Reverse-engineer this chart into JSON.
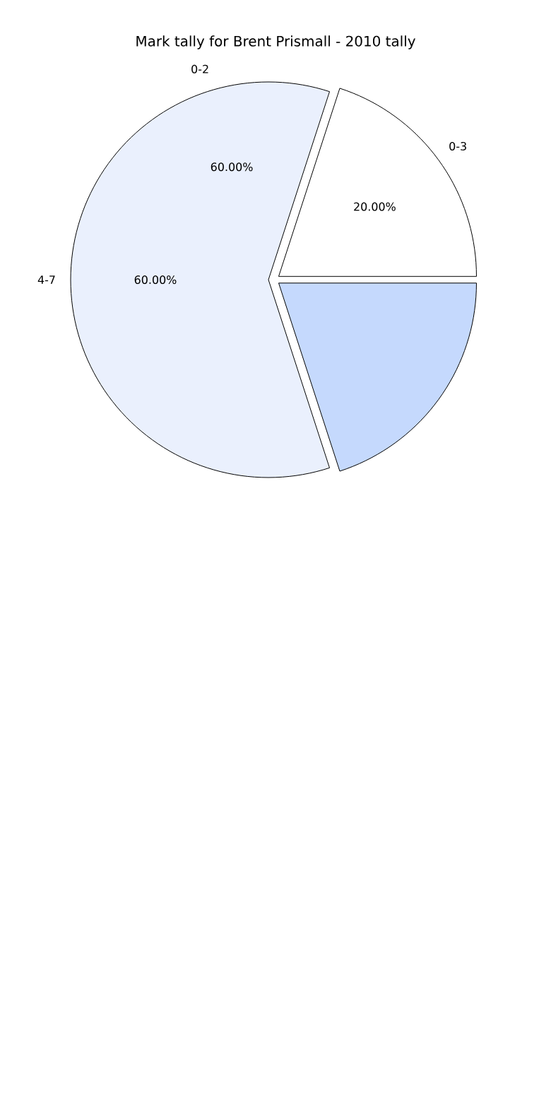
{
  "chart_data": {
    "type": "pie",
    "title": "Mark tally for Brent Prismall - 2010 tally",
    "categories": [
      "0-3",
      "0-2",
      null
    ],
    "values": [
      20,
      60,
      20
    ],
    "colors": [
      "#ffffff",
      "#eaf0fd",
      "#c5d9fd"
    ],
    "value_labels": [
      "20.00%",
      "60.00%",
      null
    ],
    "annotations": [
      "4-7",
      "60.00%"
    ]
  }
}
